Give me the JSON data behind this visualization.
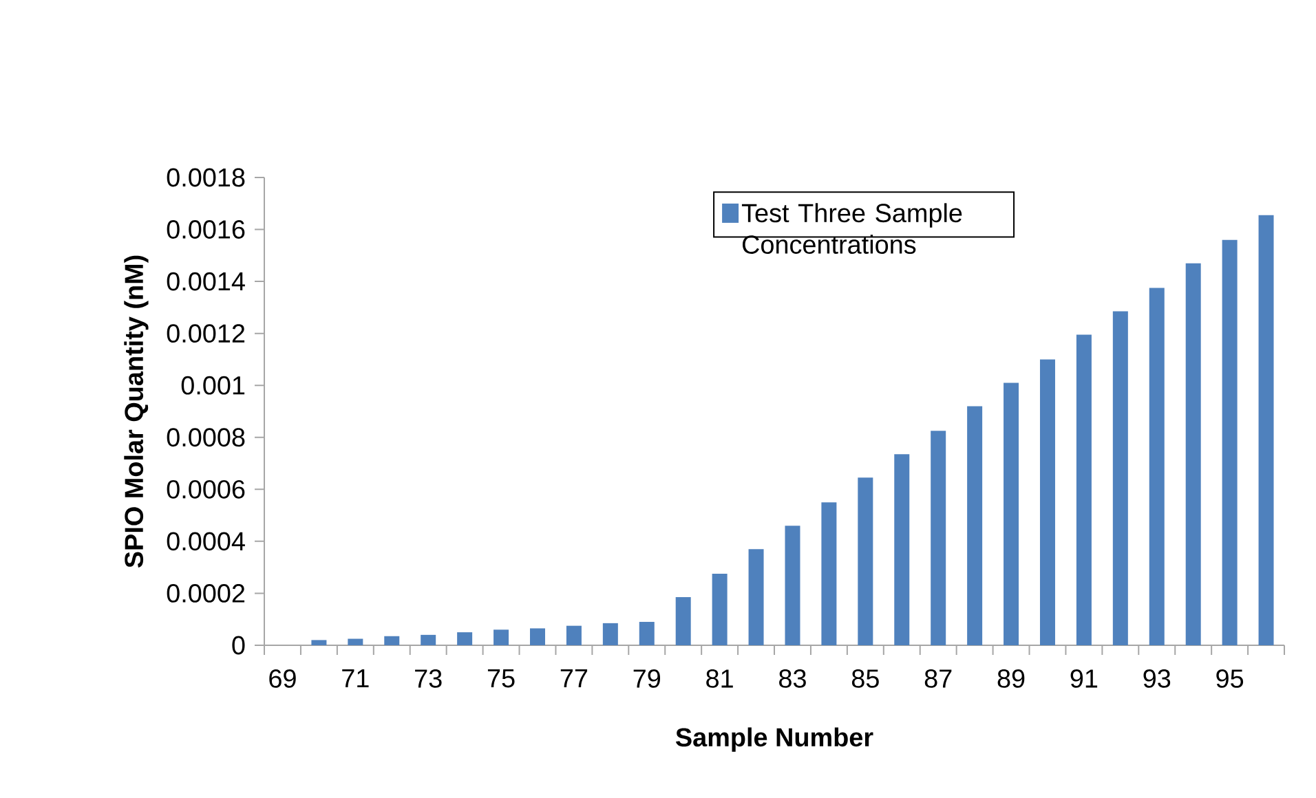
{
  "chart_data": {
    "type": "bar",
    "xlabel": "Sample Number",
    "ylabel": "SPIO  Molar Quantity (nM)",
    "categories": [
      "69",
      null,
      "71",
      null,
      "73",
      null,
      "75",
      null,
      "77",
      null,
      "79",
      null,
      "81",
      null,
      "83",
      null,
      "85",
      null,
      "87",
      null,
      "89",
      null,
      "91",
      null,
      "93",
      null,
      "95",
      null
    ],
    "series": [
      {
        "name": "Test Three Sample Concentrations",
        "color": "#4f81bd",
        "values": [
          0,
          2e-05,
          2.5e-05,
          3.5e-05,
          4e-05,
          5e-05,
          6e-05,
          6.5e-05,
          7.5e-05,
          8.5e-05,
          9e-05,
          0.000185,
          0.000275,
          0.00037,
          0.00046,
          0.00055,
          0.000645,
          0.000735,
          0.000825,
          0.00092,
          0.00101,
          0.0011,
          0.001195,
          0.001285,
          0.001375,
          0.00147,
          0.00156,
          0.001655
        ]
      }
    ],
    "ylim": [
      0,
      0.0018
    ],
    "yticks": [
      0,
      0.0002,
      0.0004,
      0.0006,
      0.0008,
      0.001,
      0.0012,
      0.0014,
      0.0016,
      0.0018
    ],
    "legend": "top right",
    "grid": false
  }
}
